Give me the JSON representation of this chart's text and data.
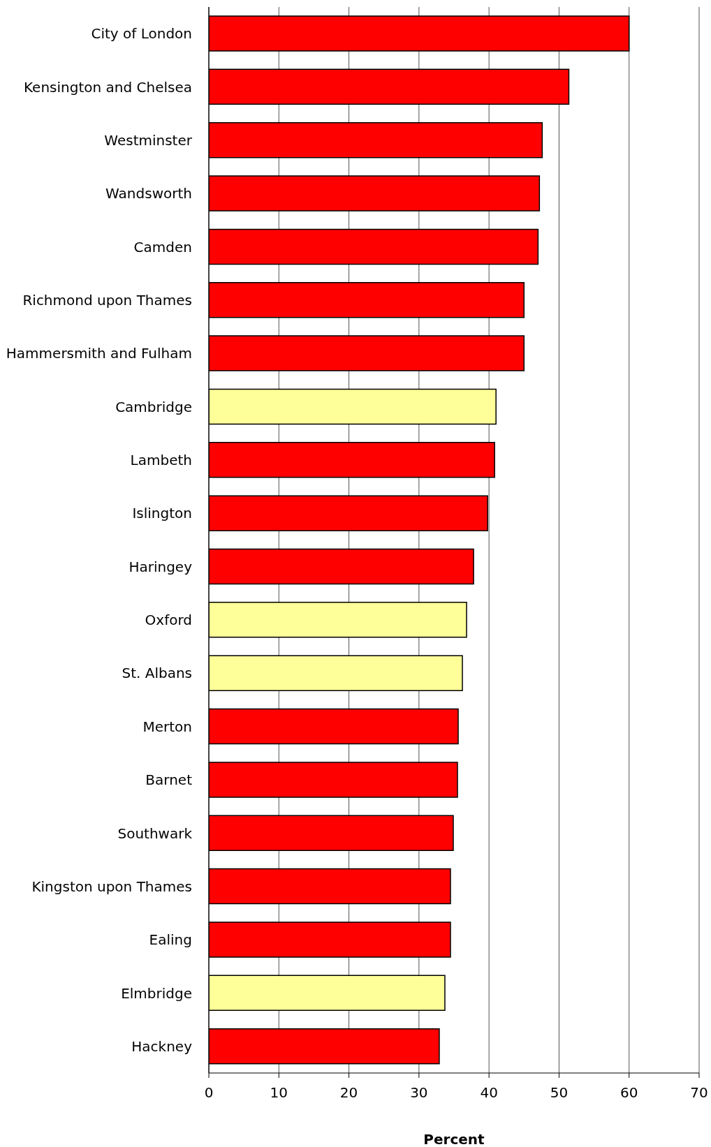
{
  "chart_data": {
    "type": "bar",
    "orientation": "horizontal",
    "xlabel": "Percent",
    "categories": [
      "City of London",
      "Kensington and Chelsea",
      "Westminster",
      "Wandsworth",
      "Camden",
      "Richmond upon Thames",
      "Hammersmith and Fulham",
      "Cambridge",
      "Lambeth",
      "Islington",
      "Haringey",
      "Oxford",
      "St. Albans",
      "Merton",
      "Barnet",
      "Southwark",
      "Kingston upon Thames",
      "Ealing",
      "Elmbridge",
      "Hackney"
    ],
    "values": [
      60,
      51.4,
      47.6,
      47.2,
      47.0,
      45.0,
      45.0,
      41.0,
      40.8,
      39.8,
      37.8,
      36.8,
      36.2,
      35.6,
      35.5,
      34.9,
      34.5,
      34.5,
      33.7,
      32.9
    ],
    "colors": [
      "#ff0000",
      "#ff0000",
      "#ff0000",
      "#ff0000",
      "#ff0000",
      "#ff0000",
      "#ff0000",
      "#ffff99",
      "#ff0000",
      "#ff0000",
      "#ff0000",
      "#ffff99",
      "#ffff99",
      "#ff0000",
      "#ff0000",
      "#ff0000",
      "#ff0000",
      "#ff0000",
      "#ffff99",
      "#ff0000"
    ],
    "xlim": [
      0,
      70
    ],
    "xticks": [
      0,
      10,
      20,
      30,
      40,
      50,
      60,
      70
    ],
    "grid": "x"
  }
}
